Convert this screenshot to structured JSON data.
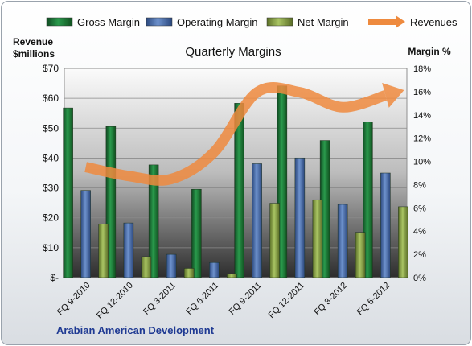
{
  "chart_data": {
    "type": "bar",
    "title": "Quarterly Margins",
    "footer": "Arabian American Development",
    "left_axis_title": [
      "Revenue",
      "$millions"
    ],
    "right_axis_title": "Margin %",
    "categories": [
      "FQ 9-2010",
      "FQ 12-2010",
      "FQ 3-2011",
      "FQ 6-2011",
      "FQ 9-2011",
      "FQ 12-2011",
      "FQ 3-2012",
      "FQ 6-2012"
    ],
    "series": [
      {
        "name": "Gross Margin",
        "axis": "right",
        "unit": "%",
        "color": "#1e7a3a",
        "values": [
          14.6,
          13.0,
          9.7,
          7.6,
          15.0,
          16.5,
          11.8,
          13.4
        ]
      },
      {
        "name": "Operating Margin",
        "axis": "right",
        "unit": "%",
        "color": "#4a6fae",
        "values": [
          7.5,
          4.7,
          2.0,
          1.3,
          9.8,
          10.3,
          6.3,
          9.0
        ]
      },
      {
        "name": "Net Margin",
        "axis": "right",
        "unit": "%",
        "color": "#8fa84b",
        "values": [
          4.6,
          1.8,
          0.8,
          0.3,
          6.4,
          6.7,
          3.9,
          6.1
        ]
      },
      {
        "name": "Revenues",
        "axis": "left",
        "unit": "$millions",
        "type": "line",
        "color": "#ee8a3e",
        "values": [
          37,
          34,
          33,
          42,
          62,
          62,
          57,
          61
        ]
      }
    ],
    "left_axis": {
      "min": 0,
      "max": 70,
      "ticks": [
        0,
        10,
        20,
        30,
        40,
        50,
        60,
        70
      ],
      "tick_labels": [
        "$-",
        "$10",
        "$20",
        "$30",
        "$40",
        "$50",
        "$60",
        "$70"
      ]
    },
    "right_axis": {
      "min": 0,
      "max": 18,
      "ticks": [
        0,
        2,
        4,
        6,
        8,
        10,
        12,
        14,
        16,
        18
      ],
      "tick_labels": [
        "0%",
        "2%",
        "4%",
        "6%",
        "8%",
        "10%",
        "12%",
        "14%",
        "16%",
        "18%"
      ]
    },
    "grid": true,
    "legend": "top"
  }
}
